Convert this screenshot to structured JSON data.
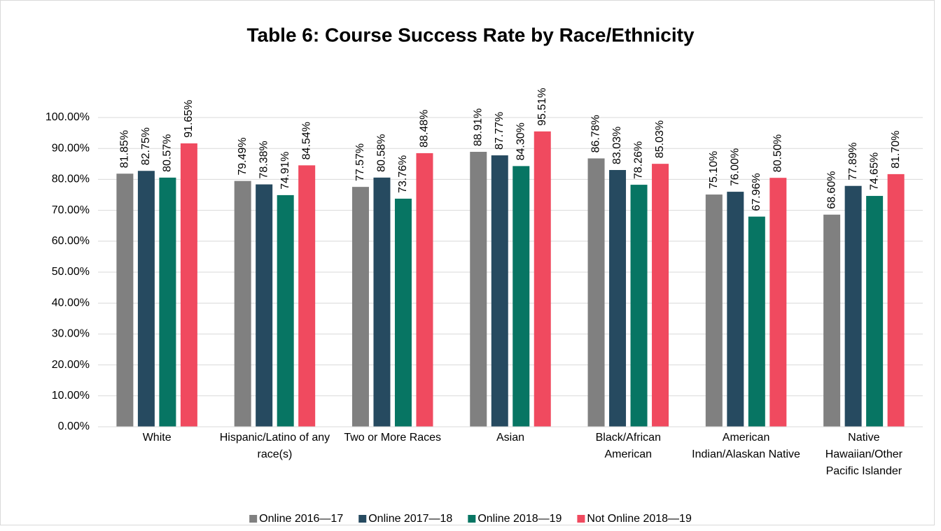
{
  "chart_data": {
    "type": "bar",
    "title": "Table 6:  Course Success Rate by Race/Ethnicity",
    "categories": [
      "White",
      "Hispanic/Latino of any race(s)",
      "Two or More Races",
      "Asian",
      "Black/African American",
      "American Indian/Alaskan Native",
      "Native Hawaiian/Other Pacific Islander"
    ],
    "series": [
      {
        "name": "Online 2016—17",
        "color": "#808080",
        "values": [
          81.85,
          79.49,
          77.57,
          88.91,
          86.78,
          75.1,
          68.6
        ],
        "value_labels": [
          "81.85%",
          "79.49%",
          "77.57%",
          "88.91%",
          "86.78%",
          "75.10%",
          "68.60%"
        ]
      },
      {
        "name": "Online 2017—18",
        "color": "#264a60",
        "values": [
          82.75,
          78.38,
          80.58,
          87.77,
          83.03,
          76.0,
          77.89
        ],
        "value_labels": [
          "82.75%",
          "78.38%",
          "80.58%",
          "87.77%",
          "83.03%",
          "76.00%",
          "77.89%"
        ]
      },
      {
        "name": "Online 2018—19",
        "color": "#077563",
        "values": [
          80.57,
          74.91,
          73.76,
          84.3,
          78.26,
          67.96,
          74.65
        ],
        "value_labels": [
          "80.57%",
          "74.91%",
          "73.76%",
          "84.30%",
          "78.26%",
          "67.96%",
          "74.65%"
        ]
      },
      {
        "name": "Not Online 2018—19",
        "color": "#f04a5f",
        "values": [
          91.65,
          84.54,
          88.48,
          95.51,
          85.03,
          80.5,
          81.7
        ],
        "value_labels": [
          "91.65%",
          "84.54%",
          "88.48%",
          "95.51%",
          "85.03%",
          "80.50%",
          "81.70%"
        ]
      }
    ],
    "ylim": [
      0,
      100
    ],
    "yticks": [
      {
        "value": 0,
        "label": "0.00%"
      },
      {
        "value": 10,
        "label": "10.00%"
      },
      {
        "value": 20,
        "label": "20.00%"
      },
      {
        "value": 30,
        "label": "30.00%"
      },
      {
        "value": 40,
        "label": "40.00%"
      },
      {
        "value": 50,
        "label": "50.00%"
      },
      {
        "value": 60,
        "label": "60.00%"
      },
      {
        "value": 70,
        "label": "70.00%"
      },
      {
        "value": 80,
        "label": "80.00%"
      },
      {
        "value": 90,
        "label": "90.00%"
      },
      {
        "value": 100,
        "label": "100.00%"
      }
    ],
    "grid": true,
    "legend": "bottom"
  }
}
